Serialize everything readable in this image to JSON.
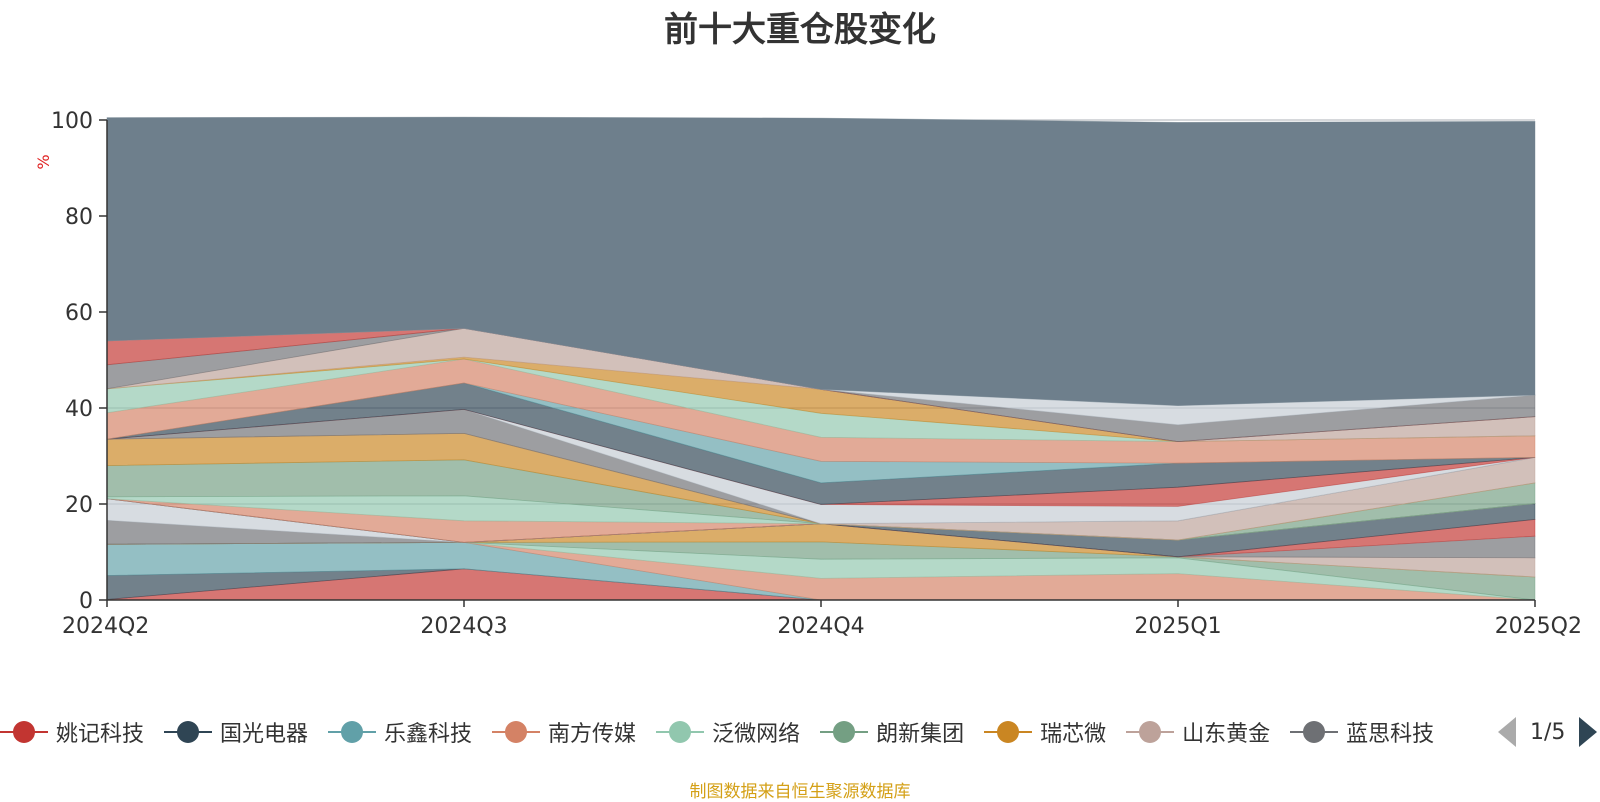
{
  "title": "前十大重仓股变化",
  "source_note": "制图数据来自恒生聚源数据库",
  "legend": {
    "items": [
      {
        "name": "姚记科技",
        "color": "#c23531"
      },
      {
        "name": "国光电器",
        "color": "#2f4554"
      },
      {
        "name": "乐鑫科技",
        "color": "#61a0a8"
      },
      {
        "name": "南方传媒",
        "color": "#d48265"
      },
      {
        "name": "泛微网络",
        "color": "#91c7ae"
      },
      {
        "name": "朗新集团",
        "color": "#749f83"
      },
      {
        "name": "瑞芯微",
        "color": "#ca8622"
      },
      {
        "name": "山东黄金",
        "color": "#bda29a"
      },
      {
        "name": "蓝思科技",
        "color": "#6e7074"
      }
    ],
    "page": "1/5"
  },
  "chart_data": {
    "type": "area",
    "stacked": true,
    "categories": [
      "2024Q2",
      "2024Q3",
      "2024Q4",
      "2025Q1",
      "2025Q2"
    ],
    "ylabel": "%",
    "ylim": [
      0,
      100
    ],
    "yticks": [
      0,
      20,
      40,
      60,
      80,
      100
    ],
    "grid": true,
    "series": [
      {
        "color": "#c23531",
        "values": [
          0.1,
          6.5,
          0,
          0,
          0
        ]
      },
      {
        "color": "#2f4554",
        "values": [
          5,
          0,
          0,
          0,
          0
        ]
      },
      {
        "color": "#61a0a8",
        "values": [
          6.5,
          5.5,
          0,
          0,
          0
        ]
      },
      {
        "color": "#d48265",
        "values": [
          0,
          0,
          4.5,
          5.5,
          0
        ]
      },
      {
        "color": "#91c7ae",
        "values": [
          0,
          0,
          4,
          3.3,
          0
        ]
      },
      {
        "color": "#749f83",
        "values": [
          0,
          0,
          3.6,
          0.2,
          4.8
        ]
      },
      {
        "color": "#ca8622",
        "values": [
          0,
          0,
          3.8,
          0,
          0
        ]
      },
      {
        "color": "#bda29a",
        "values": [
          0,
          0,
          0,
          0,
          4
        ]
      },
      {
        "color": "#6e7074",
        "values": [
          5,
          0,
          0,
          0,
          4.5
        ]
      },
      {
        "color": "#c4ccd3",
        "values": [
          4.5,
          0,
          0,
          0,
          0
        ]
      },
      {
        "color": "#c23531",
        "values": [
          0,
          0,
          0,
          0,
          3.5
        ]
      },
      {
        "color": "#2f4554",
        "values": [
          0,
          0,
          0,
          3.5,
          3.3
        ]
      },
      {
        "color": "#61a0a8",
        "values": [
          0,
          0,
          0,
          0,
          0
        ]
      },
      {
        "color": "#d48265",
        "values": [
          0,
          4.5,
          0,
          0,
          0
        ]
      },
      {
        "color": "#91c7ae",
        "values": [
          0.4,
          5.2,
          0,
          0,
          0
        ]
      },
      {
        "color": "#749f83",
        "values": [
          6.5,
          7.5,
          0,
          0,
          4.3
        ]
      },
      {
        "color": "#ca8622",
        "values": [
          5.5,
          5.5,
          0,
          0,
          0
        ]
      },
      {
        "color": "#bda29a",
        "values": [
          0,
          0,
          0,
          4,
          5.3
        ]
      },
      {
        "color": "#6e7074",
        "values": [
          0,
          5,
          0,
          0,
          0
        ]
      },
      {
        "color": "#c4ccd3",
        "values": [
          0,
          0,
          4,
          3,
          0
        ]
      },
      {
        "color": "#c23531",
        "values": [
          0,
          0,
          0,
          4,
          0
        ]
      },
      {
        "color": "#2f4554",
        "values": [
          0,
          5.5,
          4.5,
          5,
          0
        ]
      },
      {
        "color": "#61a0a8",
        "values": [
          0,
          0,
          4.5,
          0,
          0
        ]
      },
      {
        "color": "#d48265",
        "values": [
          5.5,
          5,
          5,
          4.5,
          4.5
        ]
      },
      {
        "color": "#91c7ae",
        "values": [
          5,
          0,
          5,
          0,
          0
        ]
      },
      {
        "color": "#ca8622",
        "values": [
          0,
          0.4,
          5,
          0,
          0
        ]
      },
      {
        "color": "#bda29a",
        "values": [
          0,
          6,
          0,
          0,
          4
        ]
      },
      {
        "color": "#6e7074",
        "values": [
          5,
          0,
          0,
          0,
          0
        ]
      },
      {
        "color": "#c23531",
        "values": [
          5,
          0,
          0,
          0,
          0
        ]
      },
      {
        "color": "#6e7074",
        "values": [
          0,
          0,
          0,
          3.5,
          4.5
        ]
      },
      {
        "color": "#c4ccd3",
        "values": [
          0,
          0,
          0,
          4,
          0
        ]
      },
      {
        "color": "#6e7f8c",
        "values": [
          46.5,
          44,
          56.5,
          59,
          57
        ]
      }
    ]
  }
}
